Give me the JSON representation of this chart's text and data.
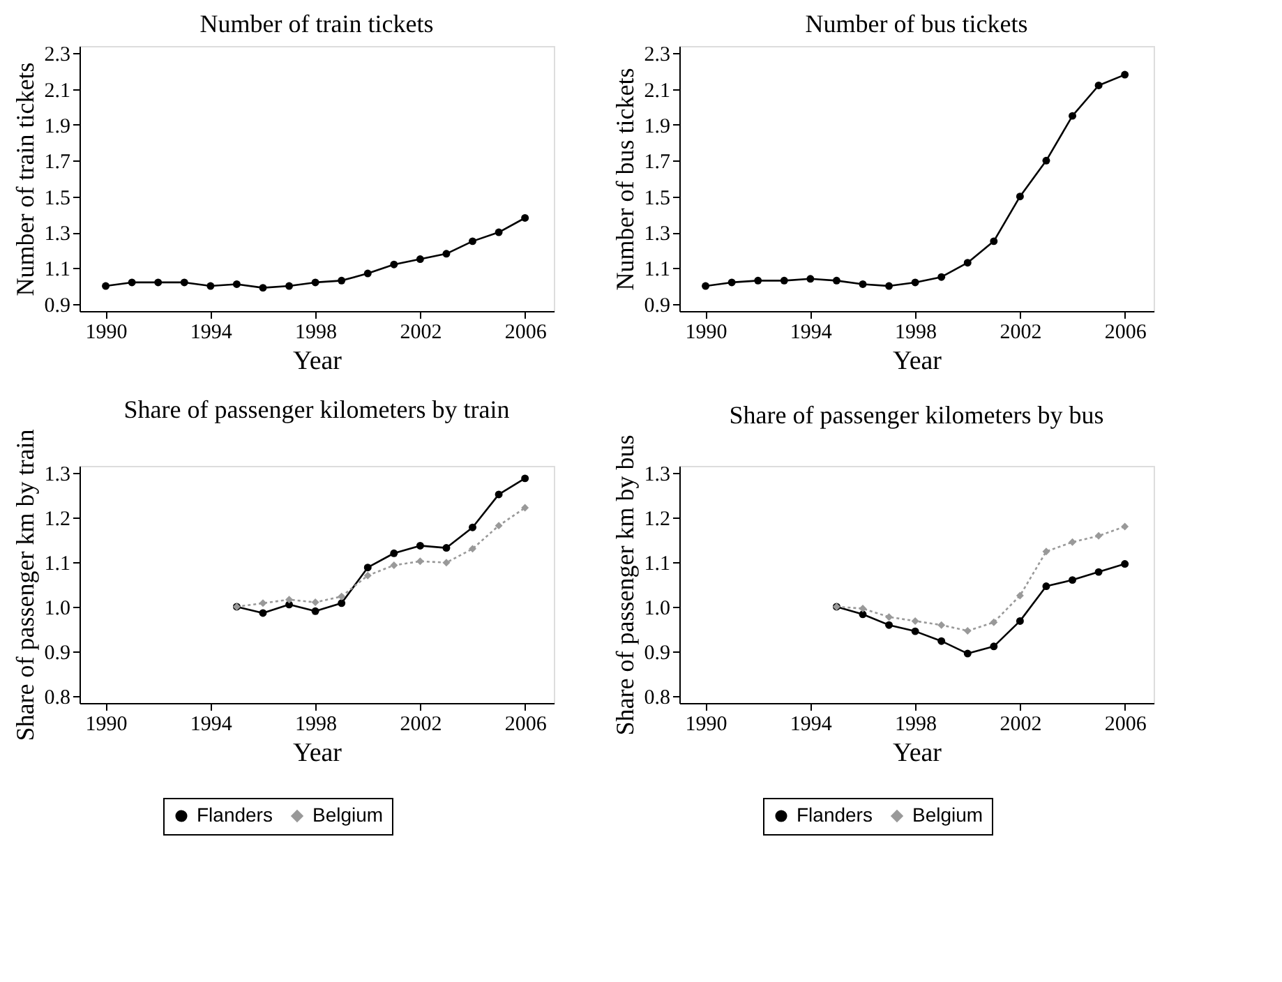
{
  "chart_data": [
    {
      "type": "line",
      "title": "Number of train tickets",
      "xlabel": "Year",
      "ylabel": "Number of train tickets",
      "x": [
        1990,
        1991,
        1992,
        1993,
        1994,
        1995,
        1996,
        1997,
        1998,
        1999,
        2000,
        2001,
        2002,
        2003,
        2004,
        2005,
        2006
      ],
      "series": [
        {
          "color": "#000000",
          "marker": "circle",
          "line_style": "solid",
          "values": [
            1.0,
            1.02,
            1.02,
            1.02,
            1.0,
            1.01,
            0.99,
            1.0,
            1.02,
            1.03,
            1.07,
            1.12,
            1.15,
            1.18,
            1.25,
            1.3,
            1.38
          ]
        }
      ],
      "xlim": [
        1989,
        2007.1
      ],
      "xticks": [
        1990,
        1994,
        1998,
        2002,
        2006
      ],
      "ylim": [
        0.86,
        2.34
      ],
      "yticks": [
        0.9,
        1.1,
        1.3,
        1.5,
        1.7,
        1.9,
        2.1,
        2.3
      ],
      "grid": false,
      "legend": false
    },
    {
      "type": "line",
      "title": "Number of bus tickets",
      "xlabel": "Year",
      "ylabel": "Number of bus tickets",
      "x": [
        1990,
        1991,
        1992,
        1993,
        1994,
        1995,
        1996,
        1997,
        1998,
        1999,
        2000,
        2001,
        2002,
        2003,
        2004,
        2005,
        2006
      ],
      "series": [
        {
          "color": "#000000",
          "marker": "circle",
          "line_style": "solid",
          "values": [
            1.0,
            1.02,
            1.03,
            1.03,
            1.04,
            1.03,
            1.01,
            1.0,
            1.02,
            1.05,
            1.13,
            1.25,
            1.5,
            1.7,
            1.95,
            2.12,
            2.18
          ]
        }
      ],
      "xlim": [
        1989,
        2007.1
      ],
      "xticks": [
        1990,
        1994,
        1998,
        2002,
        2006
      ],
      "ylim": [
        0.86,
        2.34
      ],
      "yticks": [
        0.9,
        1.1,
        1.3,
        1.5,
        1.7,
        1.9,
        2.1,
        2.3
      ],
      "grid": false,
      "legend": false
    },
    {
      "type": "line",
      "title": "Share of passenger kilometers by train",
      "xlabel": "Year",
      "ylabel": "Share of passenger km by train",
      "x": [
        1995,
        1996,
        1997,
        1998,
        1999,
        2000,
        2001,
        2002,
        2003,
        2004,
        2005,
        2006
      ],
      "series": [
        {
          "name": "Flanders",
          "color": "#000000",
          "marker": "circle",
          "line_style": "solid",
          "values": [
            1.0,
            0.986,
            1.005,
            0.99,
            1.008,
            1.088,
            1.12,
            1.137,
            1.132,
            1.178,
            1.252,
            1.288
          ]
        },
        {
          "name": "Belgium",
          "color": "#999999",
          "marker": "diamond",
          "line_style": "dotted",
          "values": [
            1.0,
            1.008,
            1.016,
            1.01,
            1.023,
            1.07,
            1.093,
            1.102,
            1.099,
            1.13,
            1.182,
            1.222
          ]
        }
      ],
      "xlim": [
        1989,
        2007.1
      ],
      "xticks": [
        1990,
        1994,
        1998,
        2002,
        2006
      ],
      "ylim": [
        0.784,
        1.316
      ],
      "yticks": [
        0.8,
        0.9,
        {
          "value": 1,
          "label": "1.0"
        },
        1.1,
        1.2,
        1.3
      ],
      "grid": false,
      "legend": "bottom"
    },
    {
      "type": "line",
      "title": "Share of passenger kilometers by bus",
      "xlabel": "Year",
      "ylabel": "Share of passenger km by bus",
      "x": [
        1995,
        1996,
        1997,
        1998,
        1999,
        2000,
        2001,
        2002,
        2003,
        2004,
        2005,
        2006
      ],
      "series": [
        {
          "name": "Flanders",
          "color": "#000000",
          "marker": "circle",
          "line_style": "solid",
          "values": [
            1.0,
            0.983,
            0.959,
            0.945,
            0.923,
            0.895,
            0.911,
            0.968,
            1.046,
            1.06,
            1.078,
            1.096
          ]
        },
        {
          "name": "Belgium",
          "color": "#999999",
          "marker": "diamond",
          "line_style": "dotted",
          "values": [
            1.0,
            0.996,
            0.977,
            0.968,
            0.959,
            0.946,
            0.965,
            1.025,
            1.124,
            1.145,
            1.159,
            1.18
          ]
        }
      ],
      "xlim": [
        1989,
        2007.1
      ],
      "xticks": [
        1990,
        1994,
        1998,
        2002,
        2006
      ],
      "ylim": [
        0.784,
        1.316
      ],
      "yticks": [
        0.8,
        0.9,
        {
          "value": 1,
          "label": "1.0"
        },
        1.1,
        1.2,
        1.3
      ],
      "grid": false,
      "legend": "bottom"
    }
  ]
}
